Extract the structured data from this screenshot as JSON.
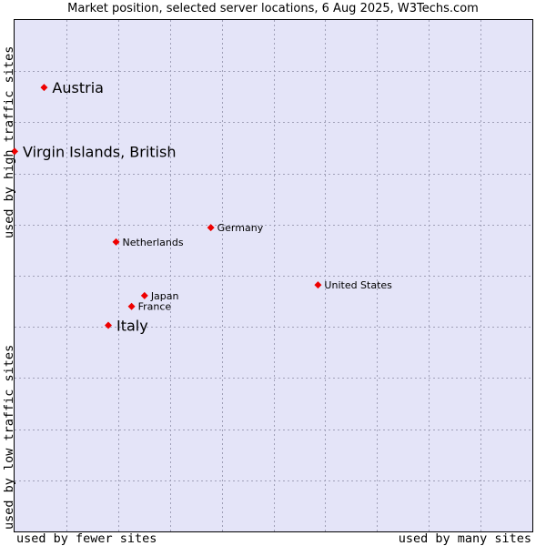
{
  "chart_data": {
    "type": "scatter",
    "title": "Market position, selected server locations, 6 Aug 2025, W3Techs.com",
    "xlabel_left": "used by fewer sites",
    "xlabel_right": "used by many sites",
    "ylabel_top": "used by high traffic sites",
    "ylabel_bottom": "used by low traffic sites",
    "xlim": [
      0,
      10
    ],
    "ylim": [
      0,
      10
    ],
    "grid": true,
    "colors": {
      "plot_background": "#e4e4f8",
      "grid": "#a0a0b8",
      "marker": "#ee0000",
      "border": "#000000"
    },
    "points": [
      {
        "label": "Austria",
        "x": 0.57,
        "y": 8.68,
        "highlight": true
      },
      {
        "label": "Virgin Islands, British",
        "x": 0.0,
        "y": 7.43,
        "highlight": true
      },
      {
        "label": "Germany",
        "x": 3.79,
        "y": 5.94,
        "highlight": false
      },
      {
        "label": "Netherlands",
        "x": 1.96,
        "y": 5.66,
        "highlight": false
      },
      {
        "label": "United States",
        "x": 5.86,
        "y": 4.82,
        "highlight": false
      },
      {
        "label": "Japan",
        "x": 2.51,
        "y": 4.61,
        "highlight": false
      },
      {
        "label": "France",
        "x": 2.26,
        "y": 4.4,
        "highlight": false
      },
      {
        "label": "Italy",
        "x": 1.81,
        "y": 4.03,
        "highlight": true
      }
    ]
  }
}
